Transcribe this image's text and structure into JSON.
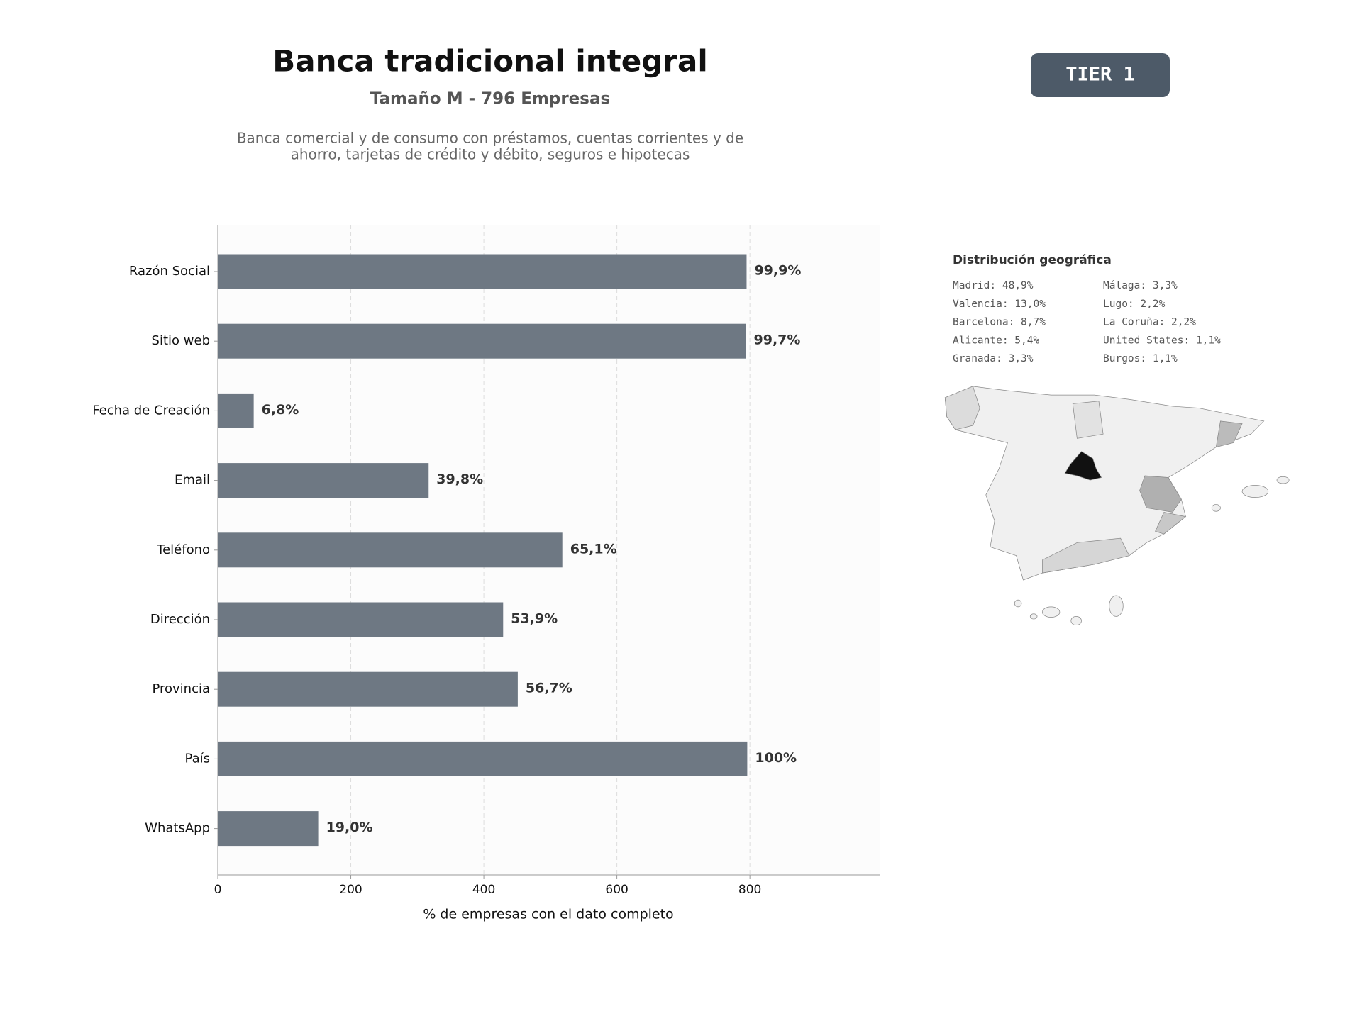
{
  "header": {
    "title": "Banca tradicional integral",
    "subtitle": "Tamaño M - 796 Empresas",
    "description": [
      "Banca comercial y de consumo con préstamos, cuentas corrientes y de",
      "ahorro, tarjetas de crédito y débito, seguros e hipotecas"
    ],
    "badge": "TIER 1"
  },
  "chart_data": {
    "type": "barh",
    "categories": [
      "Razón Social",
      "Sitio web",
      "Fecha de Creación",
      "Email",
      "Teléfono",
      "Dirección",
      "Provincia",
      "País",
      "WhatsApp"
    ],
    "values": [
      795,
      794,
      54,
      317,
      518,
      429,
      451,
      796,
      151
    ],
    "value_labels": [
      "99,9%",
      "99,7%",
      "6,8%",
      "39,8%",
      "65,1%",
      "53,9%",
      "56,7%",
      "100%",
      "19,0%"
    ],
    "color": "#6e7883",
    "xlim": [
      0,
      995
    ],
    "xticks": [
      0,
      200,
      400,
      600,
      800
    ],
    "grid": true,
    "xlabel": "% de empresas con el dato completo"
  },
  "geo": {
    "title": "Distribución geográfica",
    "items": [
      "Madrid: 48,9%",
      "Valencia: 13,0%",
      "Barcelona: 8,7%",
      "Alicante: 5,4%",
      "Granada: 3,3%",
      "Málaga: 3,3%",
      "Lugo: 2,2%",
      "La Coruña: 2,2%",
      "United States: 1,1%",
      "Burgos: 1,1%"
    ]
  }
}
